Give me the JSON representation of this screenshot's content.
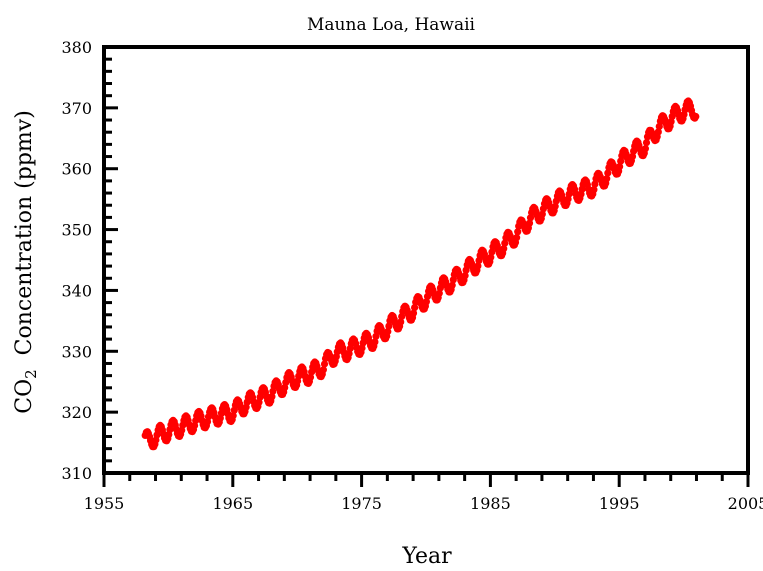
{
  "chart_data": {
    "type": "scatter",
    "title": "Mauna Loa, Hawaii",
    "xlabel": "Year",
    "ylabel": {
      "prefix": "CO",
      "subscript": "2",
      "suffix": "  Concentration (ppmv)"
    },
    "xlim": [
      1955,
      2005
    ],
    "ylim": [
      310,
      380
    ],
    "xticks": [
      1955,
      1965,
      1975,
      1985,
      1995,
      2005
    ],
    "yticks": [
      310,
      320,
      330,
      340,
      350,
      360,
      370,
      380
    ],
    "minor_ticks": true,
    "grid": false,
    "marker_color": "#ff0000",
    "series": [
      {
        "annual_mean_x": [
          1958.5,
          1959,
          1960,
          1961,
          1962,
          1963,
          1964,
          1965,
          1966,
          1967,
          1968,
          1969,
          1970,
          1971,
          1972,
          1973,
          1974,
          1975,
          1976,
          1977,
          1978,
          1979,
          1980,
          1981,
          1982,
          1983,
          1984,
          1985,
          1986,
          1987,
          1988,
          1989,
          1990,
          1991,
          1992,
          1993,
          1994,
          1995,
          1996,
          1997,
          1998,
          1999,
          2000,
          2000.8
        ],
        "annual_mean_y": [
          315.3,
          316.0,
          316.9,
          317.6,
          318.4,
          319.0,
          319.6,
          320.0,
          321.4,
          322.2,
          323.1,
          324.6,
          325.7,
          326.3,
          327.5,
          329.7,
          330.2,
          331.1,
          332.1,
          333.8,
          335.4,
          336.8,
          338.7,
          340.1,
          341.4,
          343.0,
          344.6,
          346.0,
          347.4,
          349.2,
          351.6,
          353.1,
          354.4,
          355.6,
          356.4,
          357.1,
          358.9,
          360.9,
          362.6,
          363.8,
          366.6,
          368.3,
          369.5,
          369.8
        ],
        "seasonal_amplitude": 3.0
      }
    ]
  }
}
